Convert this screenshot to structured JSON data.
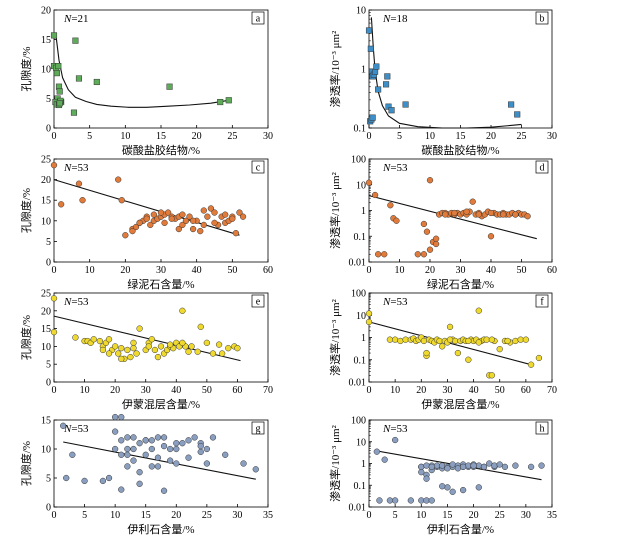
{
  "chart_data": [
    {
      "type": "scatter",
      "panel_label": "a",
      "annotation": "N=21",
      "xlabel": "碳酸盐胶结物/%",
      "ylabel": "孔隙度/%",
      "xlim": [
        0,
        30
      ],
      "ylim": [
        0,
        20
      ],
      "yscale": "linear",
      "xticks": [
        0,
        5,
        10,
        15,
        20,
        25,
        30
      ],
      "yticks": [
        0,
        5,
        10,
        15,
        20
      ],
      "marker_color": "#5eac5a",
      "trend": "curve",
      "trend_points": [
        [
          0.3,
          15.5
        ],
        [
          0.7,
          11.5
        ],
        [
          1.2,
          8.5
        ],
        [
          2,
          6.5
        ],
        [
          3,
          5.2
        ],
        [
          4.5,
          4.5
        ],
        [
          6,
          4.0
        ],
        [
          8,
          3.7
        ],
        [
          10.5,
          3.5
        ],
        [
          13,
          3.5
        ],
        [
          16,
          3.7
        ],
        [
          19,
          3.9
        ],
        [
          22,
          4.2
        ],
        [
          24.5,
          4.7
        ]
      ],
      "series": [
        {
          "x": [
            0,
            0,
            0.3,
            0.6,
            0.4,
            0.7,
            0.8,
            0.5,
            0.2,
            0.4,
            1.0,
            0.9,
            0.7,
            3.0,
            3.5,
            6.0,
            2.8,
            16.2,
            23.3,
            24.5,
            0.8
          ],
          "y": [
            15.7,
            10.5,
            10.2,
            10.5,
            9.3,
            7.0,
            6.2,
            5.0,
            4.4,
            4.0,
            4.4,
            4.6,
            3.9,
            14.8,
            8.4,
            7.8,
            2.6,
            7.0,
            4.4,
            4.7,
            4.2
          ]
        }
      ]
    },
    {
      "type": "scatter",
      "panel_label": "b",
      "annotation": "N=18",
      "xlabel": "碳酸盐胶结物/%",
      "ylabel": "渗透率/10⁻³ μm²",
      "xlim": [
        0,
        30
      ],
      "ylim": [
        0.1,
        10
      ],
      "yscale": "log",
      "xticks": [
        0,
        5,
        10,
        15,
        20,
        25,
        30
      ],
      "yticks": [
        0.1,
        1,
        10
      ],
      "marker_color": "#3e8fc7",
      "trend": "curve",
      "trend_points": [
        [
          0.4,
          7.5
        ],
        [
          0.7,
          2.3
        ],
        [
          1.0,
          0.95
        ],
        [
          1.5,
          0.42
        ],
        [
          2.2,
          0.24
        ],
        [
          3.2,
          0.16
        ],
        [
          5,
          0.12
        ],
        [
          8,
          0.105
        ],
        [
          12,
          0.1
        ],
        [
          16,
          0.1
        ],
        [
          20,
          0.103
        ],
        [
          23,
          0.11
        ],
        [
          25,
          0.115
        ]
      ],
      "series": [
        {
          "x": [
            0,
            0.3,
            0.5,
            0.6,
            0.8,
            1.0,
            1.2,
            1.5,
            3.0,
            3.2,
            3.7,
            6.0,
            23.3,
            24.3,
            0.2,
            0.4,
            2.8,
            0.6
          ],
          "y": [
            4.5,
            2.2,
            0.9,
            0.75,
            0.8,
            0.9,
            1.1,
            0.45,
            0.75,
            0.23,
            0.2,
            0.25,
            0.25,
            0.17,
            0.13,
            0.14,
            0.55,
            0.15
          ]
        }
      ]
    },
    {
      "type": "scatter",
      "panel_label": "c",
      "annotation": "N=53",
      "xlabel": "绿泥石含量/%",
      "ylabel": "孔隙度/%",
      "xlim": [
        0,
        60
      ],
      "ylim": [
        0,
        25
      ],
      "yscale": "linear",
      "xticks": [
        0,
        10,
        20,
        30,
        40,
        50,
        60
      ],
      "yticks": [
        0,
        5,
        10,
        15,
        20,
        25
      ],
      "marker_color": "#e07b3b",
      "trend": "line",
      "trend_points": [
        [
          0,
          20
        ],
        [
          52,
          6.5
        ]
      ],
      "series": [
        {
          "x": [
            0,
            2,
            7,
            8,
            18,
            19,
            22,
            23,
            24,
            25,
            26,
            27,
            28,
            29,
            30,
            31,
            31,
            32,
            33,
            34,
            35,
            35,
            36,
            37,
            38,
            39,
            40,
            41,
            42,
            43,
            44,
            45,
            46,
            47,
            48,
            49,
            50,
            51,
            52,
            20,
            22,
            24,
            26,
            28,
            30,
            33,
            36,
            39,
            42,
            45,
            48,
            50,
            53
          ],
          "y": [
            23.5,
            14,
            19,
            15,
            20,
            15,
            8,
            8.5,
            9.5,
            10,
            11,
            9,
            10,
            10.5,
            11,
            11.5,
            9.5,
            12,
            11,
            10.5,
            11,
            8,
            9,
            10,
            11,
            8,
            10,
            7.5,
            9,
            11,
            13,
            12,
            9,
            11,
            9.5,
            10,
            11,
            7,
            12,
            6.5,
            7.5,
            9.5,
            10.5,
            11.5,
            12,
            10.5,
            11.5,
            10,
            12.5,
            9.5,
            11.5,
            10.5,
            11
          ]
        }
      ]
    },
    {
      "type": "scatter",
      "panel_label": "d",
      "annotation": "N=53",
      "xlabel": "绿泥石含量/%",
      "ylabel": "渗透率/10⁻³ μm²",
      "xlim": [
        0,
        60
      ],
      "ylim": [
        0.01,
        100
      ],
      "yscale": "log",
      "xticks": [
        0,
        10,
        20,
        30,
        40,
        50,
        60
      ],
      "yticks": [
        0.01,
        0.1,
        1,
        10,
        100
      ],
      "marker_color": "#e07b3b",
      "trend": "line",
      "trend_points": [
        [
          0,
          3.8
        ],
        [
          55,
          0.08
        ]
      ],
      "series": [
        {
          "x": [
            0,
            2,
            7,
            8,
            18,
            19,
            20,
            21,
            22,
            23,
            24,
            25,
            26,
            27,
            28,
            29,
            30,
            31,
            32,
            33,
            34,
            35,
            36,
            37,
            38,
            39,
            40,
            41,
            42,
            43,
            44,
            45,
            46,
            47,
            48,
            49,
            50,
            51,
            52,
            3,
            5,
            9,
            16,
            18,
            20,
            22,
            25,
            28,
            32,
            36,
            40,
            44,
            48
          ],
          "y": [
            12,
            4,
            1.6,
            0.5,
            0.3,
            0.15,
            15,
            0.06,
            0.08,
            0.7,
            0.8,
            0.8,
            0.7,
            0.8,
            0.7,
            0.8,
            0.7,
            0.8,
            0.7,
            0.9,
            2.2,
            0.7,
            0.8,
            0.6,
            0.7,
            0.9,
            0.1,
            0.8,
            0.7,
            0.7,
            0.8,
            0.7,
            0.7,
            0.8,
            0.7,
            0.8,
            0.7,
            0.7,
            0.6,
            0.02,
            0.02,
            0.4,
            0.02,
            0.02,
            0.03,
            0.05,
            0.7,
            0.8,
            0.9,
            0.7,
            0.8,
            0.7,
            0.7
          ]
        }
      ]
    },
    {
      "type": "scatter",
      "panel_label": "e",
      "annotation": "N=53",
      "xlabel": "伊蒙混层含量/%",
      "ylabel": "孔隙度/%",
      "xlim": [
        0,
        70
      ],
      "ylim": [
        0,
        25
      ],
      "yscale": "linear",
      "xticks": [
        0,
        10,
        20,
        30,
        40,
        50,
        60,
        70
      ],
      "yticks": [
        0,
        5,
        10,
        15,
        20,
        25
      ],
      "marker_color": "#efd92e",
      "trend": "line",
      "trend_points": [
        [
          0,
          18.5
        ],
        [
          61,
          6
        ]
      ],
      "series": [
        {
          "x": [
            0,
            0,
            7,
            10,
            11,
            12,
            13,
            15,
            16,
            17,
            18,
            19,
            20,
            21,
            22,
            23,
            24,
            25,
            26,
            27,
            28,
            30,
            31,
            32,
            33,
            34,
            35,
            36,
            37,
            38,
            39,
            40,
            41,
            42,
            43,
            44,
            45,
            47,
            48,
            50,
            52,
            54,
            55,
            57,
            59,
            60,
            16,
            18,
            22,
            26,
            31,
            38,
            42
          ],
          "y": [
            23.5,
            14,
            12.5,
            11.5,
            11.5,
            11,
            12,
            11.5,
            10,
            11,
            12,
            9,
            10,
            8,
            9.5,
            6.5,
            9,
            7,
            11,
            8,
            15,
            9,
            11,
            12,
            9,
            7,
            10,
            8,
            9,
            10,
            9.5,
            11,
            10,
            20,
            10,
            8.5,
            10,
            8.5,
            15.5,
            11,
            8,
            10.5,
            8,
            9.5,
            10,
            9.5,
            9,
            8,
            6.5,
            9.5,
            10,
            10.5,
            11
          ]
        }
      ]
    },
    {
      "type": "scatter",
      "panel_label": "f",
      "annotation": "N=53",
      "xlabel": "伊蒙混层含量/%",
      "ylabel": "渗透率/10⁻³ μm²",
      "xlim": [
        0,
        70
      ],
      "ylim": [
        0.01,
        100
      ],
      "yscale": "log",
      "xticks": [
        0,
        10,
        20,
        30,
        40,
        50,
        60,
        70
      ],
      "yticks": [
        0.01,
        0.1,
        1,
        10,
        100
      ],
      "marker_color": "#efd92e",
      "trend": "line",
      "trend_points": [
        [
          0,
          5
        ],
        [
          62,
          0.06
        ]
      ],
      "series": [
        {
          "x": [
            0,
            0,
            8,
            10,
            12,
            14,
            16,
            17,
            18,
            19,
            20,
            21,
            22,
            23,
            24,
            25,
            26,
            27,
            28,
            29,
            30,
            31,
            32,
            33,
            34,
            35,
            36,
            37,
            38,
            39,
            40,
            41,
            42,
            43,
            44,
            45,
            46,
            47,
            48,
            50,
            52,
            54,
            56,
            58,
            60,
            62,
            65,
            22,
            31,
            38,
            42,
            47,
            53
          ],
          "y": [
            12,
            5,
            0.8,
            0.8,
            0.7,
            0.8,
            0.8,
            0.9,
            0.7,
            0.8,
            1.0,
            0.7,
            0.15,
            0.8,
            0.7,
            0.6,
            0.8,
            0.7,
            0.4,
            0.7,
            0.6,
            3.0,
            0.8,
            0.7,
            0.2,
            0.7,
            0.8,
            0.7,
            0.1,
            0.8,
            0.7,
            0.8,
            16,
            0.7,
            0.8,
            0.8,
            0.02,
            0.02,
            0.7,
            0.3,
            0.7,
            0.6,
            0.7,
            0.8,
            0.8,
            0.06,
            0.12,
            0.2,
            0.8,
            0.7,
            0.6,
            0.8,
            0.7
          ]
        }
      ]
    },
    {
      "type": "scatter",
      "panel_label": "g",
      "annotation": "N=53",
      "xlabel": "伊利石含量/%",
      "ylabel": "孔隙度/%",
      "xlim": [
        0,
        35
      ],
      "ylim": [
        0,
        15
      ],
      "yscale": "linear",
      "xticks": [
        0,
        5,
        10,
        15,
        20,
        25,
        30,
        35
      ],
      "yticks": [
        0,
        5,
        10,
        15
      ],
      "marker_color": "#8a9ec0",
      "trend": "line",
      "trend_points": [
        [
          1.5,
          11.2
        ],
        [
          33,
          4.8
        ]
      ],
      "series": [
        {
          "x": [
            1.5,
            2,
            3,
            5,
            8,
            9,
            10,
            10,
            11,
            11,
            12,
            12,
            13,
            13,
            14,
            14,
            15,
            15,
            16,
            16,
            17,
            17,
            18,
            18,
            19,
            20,
            20,
            21,
            22,
            23,
            24,
            24,
            25,
            26,
            28,
            31,
            33,
            10,
            11,
            12,
            13,
            14,
            15,
            16,
            17,
            18,
            19,
            20,
            22,
            24,
            25,
            12,
            11
          ],
          "y": [
            14,
            5,
            9,
            4.5,
            4.5,
            5,
            15.5,
            10,
            11.5,
            9,
            10,
            7,
            10,
            12,
            11,
            4,
            9,
            11.5,
            7,
            10,
            8.5,
            12,
            10.5,
            2.8,
            8,
            7.5,
            10,
            11,
            11.5,
            12,
            9.5,
            11,
            7.5,
            12,
            9,
            7.5,
            6.5,
            13,
            15.5,
            12,
            8,
            6,
            11.5,
            11.5,
            7,
            12,
            10,
            11,
            8.5,
            10.5,
            10,
            9,
            3
          ]
        }
      ]
    },
    {
      "type": "scatter",
      "panel_label": "h",
      "annotation": "N=53",
      "xlabel": "伊利石含量/%",
      "ylabel": "渗透率/10⁻³ μm²",
      "xlim": [
        0,
        35
      ],
      "ylim": [
        0.01,
        100
      ],
      "yscale": "log",
      "xticks": [
        0,
        5,
        10,
        15,
        20,
        25,
        30,
        35
      ],
      "yticks": [
        0.01,
        0.1,
        1,
        10,
        100
      ],
      "marker_color": "#8a9ec0",
      "trend": "line",
      "trend_points": [
        [
          1.5,
          3.8
        ],
        [
          33,
          0.18
        ]
      ],
      "series": [
        {
          "x": [
            1.5,
            2,
            3,
            4,
            5,
            10,
            10,
            11,
            11,
            12,
            12,
            13,
            13,
            14,
            14,
            15,
            15,
            16,
            16,
            17,
            17,
            18,
            18,
            19,
            19,
            20,
            20,
            21,
            22,
            23,
            24,
            24,
            25,
            26,
            28,
            31,
            33,
            10,
            11,
            12,
            14,
            16,
            18,
            21,
            10,
            11,
            12,
            15,
            18,
            20,
            5,
            8,
            22
          ],
          "y": [
            3.5,
            0.02,
            1.5,
            0.02,
            12,
            0.7,
            0.4,
            0.3,
            0.2,
            0.8,
            0.5,
            0.7,
            0.8,
            0.6,
            0.8,
            0.7,
            0.08,
            0.7,
            0.9,
            0.8,
            0.6,
            0.7,
            0.9,
            0.7,
            0.8,
            0.7,
            0.9,
            0.8,
            0.7,
            1.0,
            0.7,
            0.8,
            0.9,
            0.7,
            0.8,
            0.7,
            0.8,
            0.02,
            0.02,
            0.02,
            0.09,
            0.05,
            0.06,
            0.08,
            0.7,
            0.8,
            0.7,
            0.6,
            0.7,
            0.8,
            0.02,
            0.02,
            0.7
          ]
        }
      ]
    }
  ]
}
